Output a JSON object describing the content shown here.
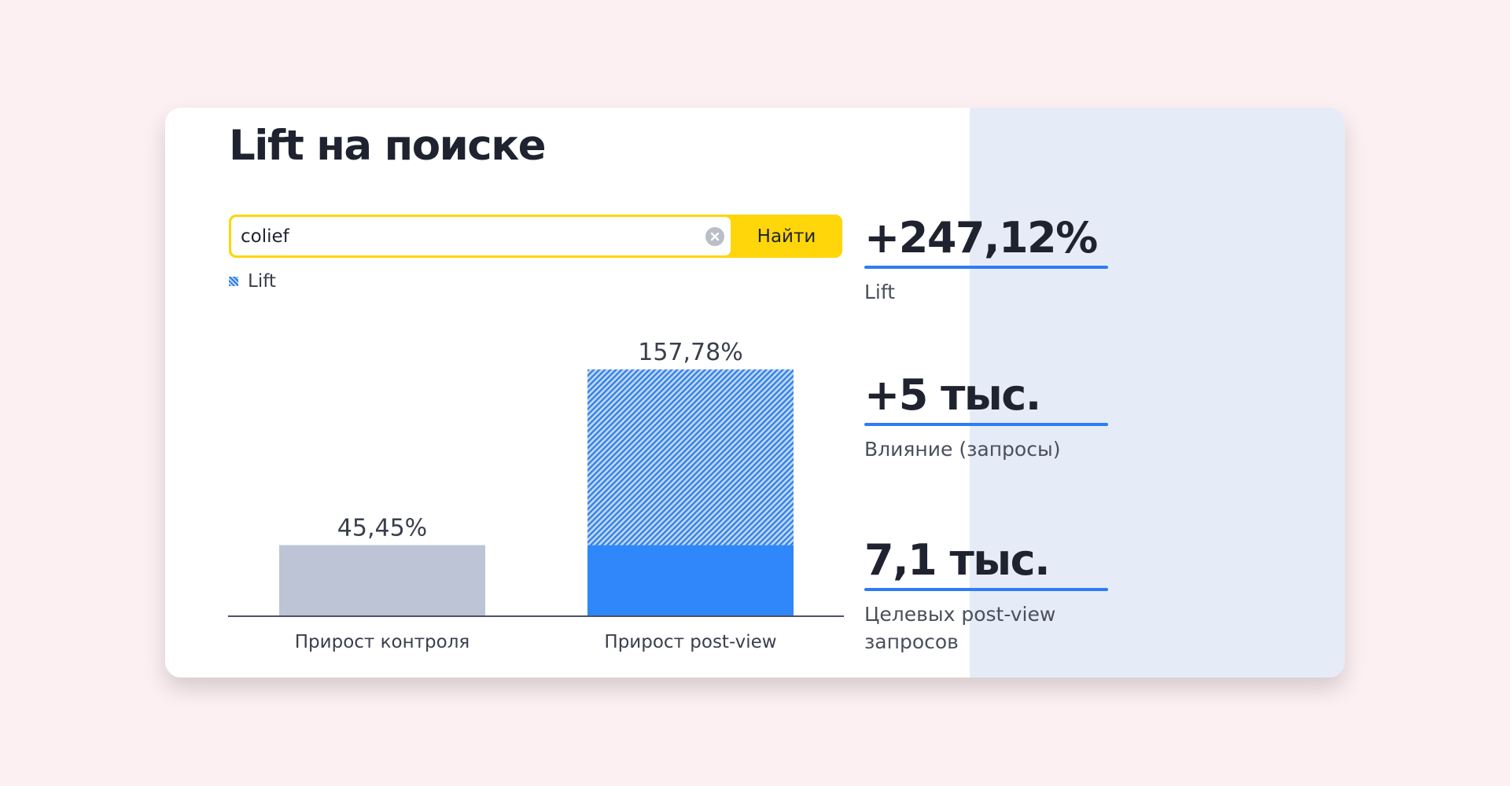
{
  "title": "Lift на поиске",
  "search": {
    "value": "colief",
    "button_label": "Найти"
  },
  "legend": {
    "label": "Lift"
  },
  "chart_data": {
    "type": "bar",
    "categories": [
      "Прирост контроля",
      "Прирост post-view"
    ],
    "series": [
      {
        "values": [
          45.45,
          45.45
        ],
        "colors": [
          "#bcc4d6",
          "#2f87fa"
        ]
      },
      {
        "name": "Lift",
        "values": [
          0,
          112.33
        ],
        "color": "#2d7de6"
      }
    ],
    "totals": [
      45.45,
      157.78
    ],
    "data_labels": [
      "45,45%",
      "157,78%"
    ],
    "ylim": [
      0,
      157.78
    ],
    "stacked": true,
    "grid": false
  },
  "stats": [
    {
      "value": "+247,12%",
      "label": "Lift"
    },
    {
      "value": "+5 тыс.",
      "label": "Влияние (запросы)"
    },
    {
      "value": "7,1 тыс.",
      "label": "Целевых post-view запросов"
    }
  ],
  "colors": {
    "accent_yellow": "#ffd60a",
    "accent_blue": "#2f7bf5",
    "panel_bg": "#e6ecf7",
    "page_bg": "#fdf0f3"
  }
}
